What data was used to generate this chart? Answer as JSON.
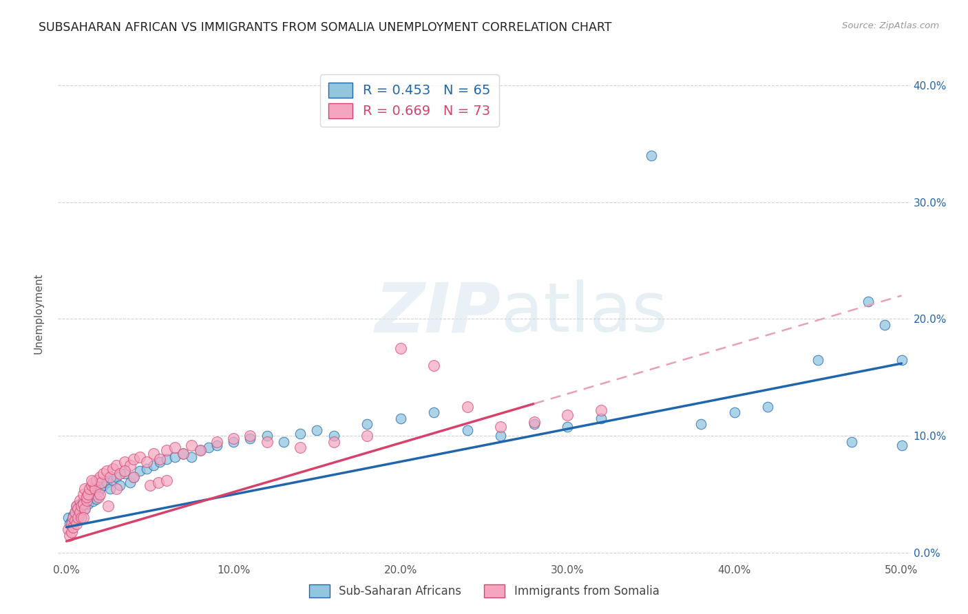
{
  "title": "SUBSAHARAN AFRICAN VS IMMIGRANTS FROM SOMALIA UNEMPLOYMENT CORRELATION CHART",
  "source": "Source: ZipAtlas.com",
  "xlabel_ticks": [
    "0.0%",
    "10.0%",
    "20.0%",
    "30.0%",
    "40.0%",
    "50.0%"
  ],
  "xlabel_vals": [
    0.0,
    0.1,
    0.2,
    0.3,
    0.4,
    0.5
  ],
  "ylabel": "Unemployment",
  "ylabel_ticks": [
    "0.0%",
    "10.0%",
    "20.0%",
    "30.0%",
    "40.0%"
  ],
  "ylabel_vals": [
    0.0,
    0.1,
    0.2,
    0.3,
    0.4
  ],
  "xlim": [
    -0.005,
    0.505
  ],
  "ylim": [
    -0.005,
    0.415
  ],
  "blue_color": "#92c5de",
  "pink_color": "#f4a6c0",
  "blue_line_color": "#2166ac",
  "pink_line_color": "#d6426b",
  "pink_dashed_color": "#e8a0b4",
  "R_blue": 0.453,
  "N_blue": 65,
  "R_pink": 0.669,
  "N_pink": 73,
  "legend_label_blue": "Sub-Saharan Africans",
  "legend_label_pink": "Immigrants from Somalia",
  "watermark_zip": "ZIP",
  "watermark_atlas": "atlas",
  "background_color": "#ffffff",
  "grid_color": "#cccccc",
  "blue_slope": 0.28,
  "blue_intercept": 0.022,
  "pink_slope": 0.42,
  "pink_intercept": 0.01,
  "blue_scatter_x": [
    0.001,
    0.002,
    0.003,
    0.004,
    0.005,
    0.006,
    0.007,
    0.008,
    0.009,
    0.01,
    0.011,
    0.012,
    0.013,
    0.014,
    0.015,
    0.016,
    0.017,
    0.018,
    0.019,
    0.02,
    0.022,
    0.024,
    0.026,
    0.028,
    0.03,
    0.032,
    0.035,
    0.038,
    0.04,
    0.044,
    0.048,
    0.052,
    0.056,
    0.06,
    0.065,
    0.07,
    0.075,
    0.08,
    0.085,
    0.09,
    0.1,
    0.11,
    0.12,
    0.13,
    0.14,
    0.15,
    0.16,
    0.18,
    0.2,
    0.22,
    0.24,
    0.26,
    0.28,
    0.3,
    0.32,
    0.35,
    0.38,
    0.4,
    0.42,
    0.45,
    0.47,
    0.48,
    0.49,
    0.5,
    0.5
  ],
  "blue_scatter_y": [
    0.03,
    0.025,
    0.028,
    0.032,
    0.035,
    0.04,
    0.038,
    0.042,
    0.03,
    0.045,
    0.038,
    0.05,
    0.042,
    0.048,
    0.055,
    0.044,
    0.05,
    0.046,
    0.052,
    0.055,
    0.058,
    0.06,
    0.055,
    0.062,
    0.065,
    0.058,
    0.068,
    0.06,
    0.065,
    0.07,
    0.072,
    0.075,
    0.078,
    0.08,
    0.082,
    0.085,
    0.082,
    0.088,
    0.09,
    0.092,
    0.095,
    0.098,
    0.1,
    0.095,
    0.102,
    0.105,
    0.1,
    0.11,
    0.115,
    0.12,
    0.105,
    0.1,
    0.11,
    0.108,
    0.115,
    0.34,
    0.11,
    0.12,
    0.125,
    0.165,
    0.095,
    0.215,
    0.195,
    0.165,
    0.092
  ],
  "pink_scatter_x": [
    0.001,
    0.002,
    0.003,
    0.003,
    0.004,
    0.004,
    0.005,
    0.005,
    0.006,
    0.006,
    0.007,
    0.007,
    0.008,
    0.008,
    0.009,
    0.009,
    0.01,
    0.01,
    0.011,
    0.011,
    0.012,
    0.012,
    0.013,
    0.014,
    0.015,
    0.016,
    0.017,
    0.018,
    0.019,
    0.02,
    0.021,
    0.022,
    0.024,
    0.026,
    0.028,
    0.03,
    0.032,
    0.035,
    0.038,
    0.04,
    0.044,
    0.048,
    0.052,
    0.056,
    0.06,
    0.065,
    0.07,
    0.075,
    0.08,
    0.09,
    0.1,
    0.11,
    0.12,
    0.14,
    0.16,
    0.18,
    0.2,
    0.22,
    0.24,
    0.26,
    0.28,
    0.3,
    0.32,
    0.035,
    0.04,
    0.05,
    0.055,
    0.06,
    0.025,
    0.03,
    0.015,
    0.02,
    0.01
  ],
  "pink_scatter_y": [
    0.02,
    0.015,
    0.025,
    0.018,
    0.03,
    0.022,
    0.028,
    0.035,
    0.025,
    0.04,
    0.03,
    0.038,
    0.035,
    0.045,
    0.04,
    0.03,
    0.042,
    0.05,
    0.038,
    0.055,
    0.045,
    0.048,
    0.05,
    0.055,
    0.058,
    0.06,
    0.055,
    0.062,
    0.048,
    0.065,
    0.06,
    0.068,
    0.07,
    0.065,
    0.072,
    0.075,
    0.068,
    0.078,
    0.075,
    0.08,
    0.082,
    0.078,
    0.085,
    0.08,
    0.088,
    0.09,
    0.085,
    0.092,
    0.088,
    0.095,
    0.098,
    0.1,
    0.095,
    0.09,
    0.095,
    0.1,
    0.175,
    0.16,
    0.125,
    0.108,
    0.112,
    0.118,
    0.122,
    0.07,
    0.065,
    0.058,
    0.06,
    0.062,
    0.04,
    0.055,
    0.062,
    0.05,
    0.03
  ]
}
